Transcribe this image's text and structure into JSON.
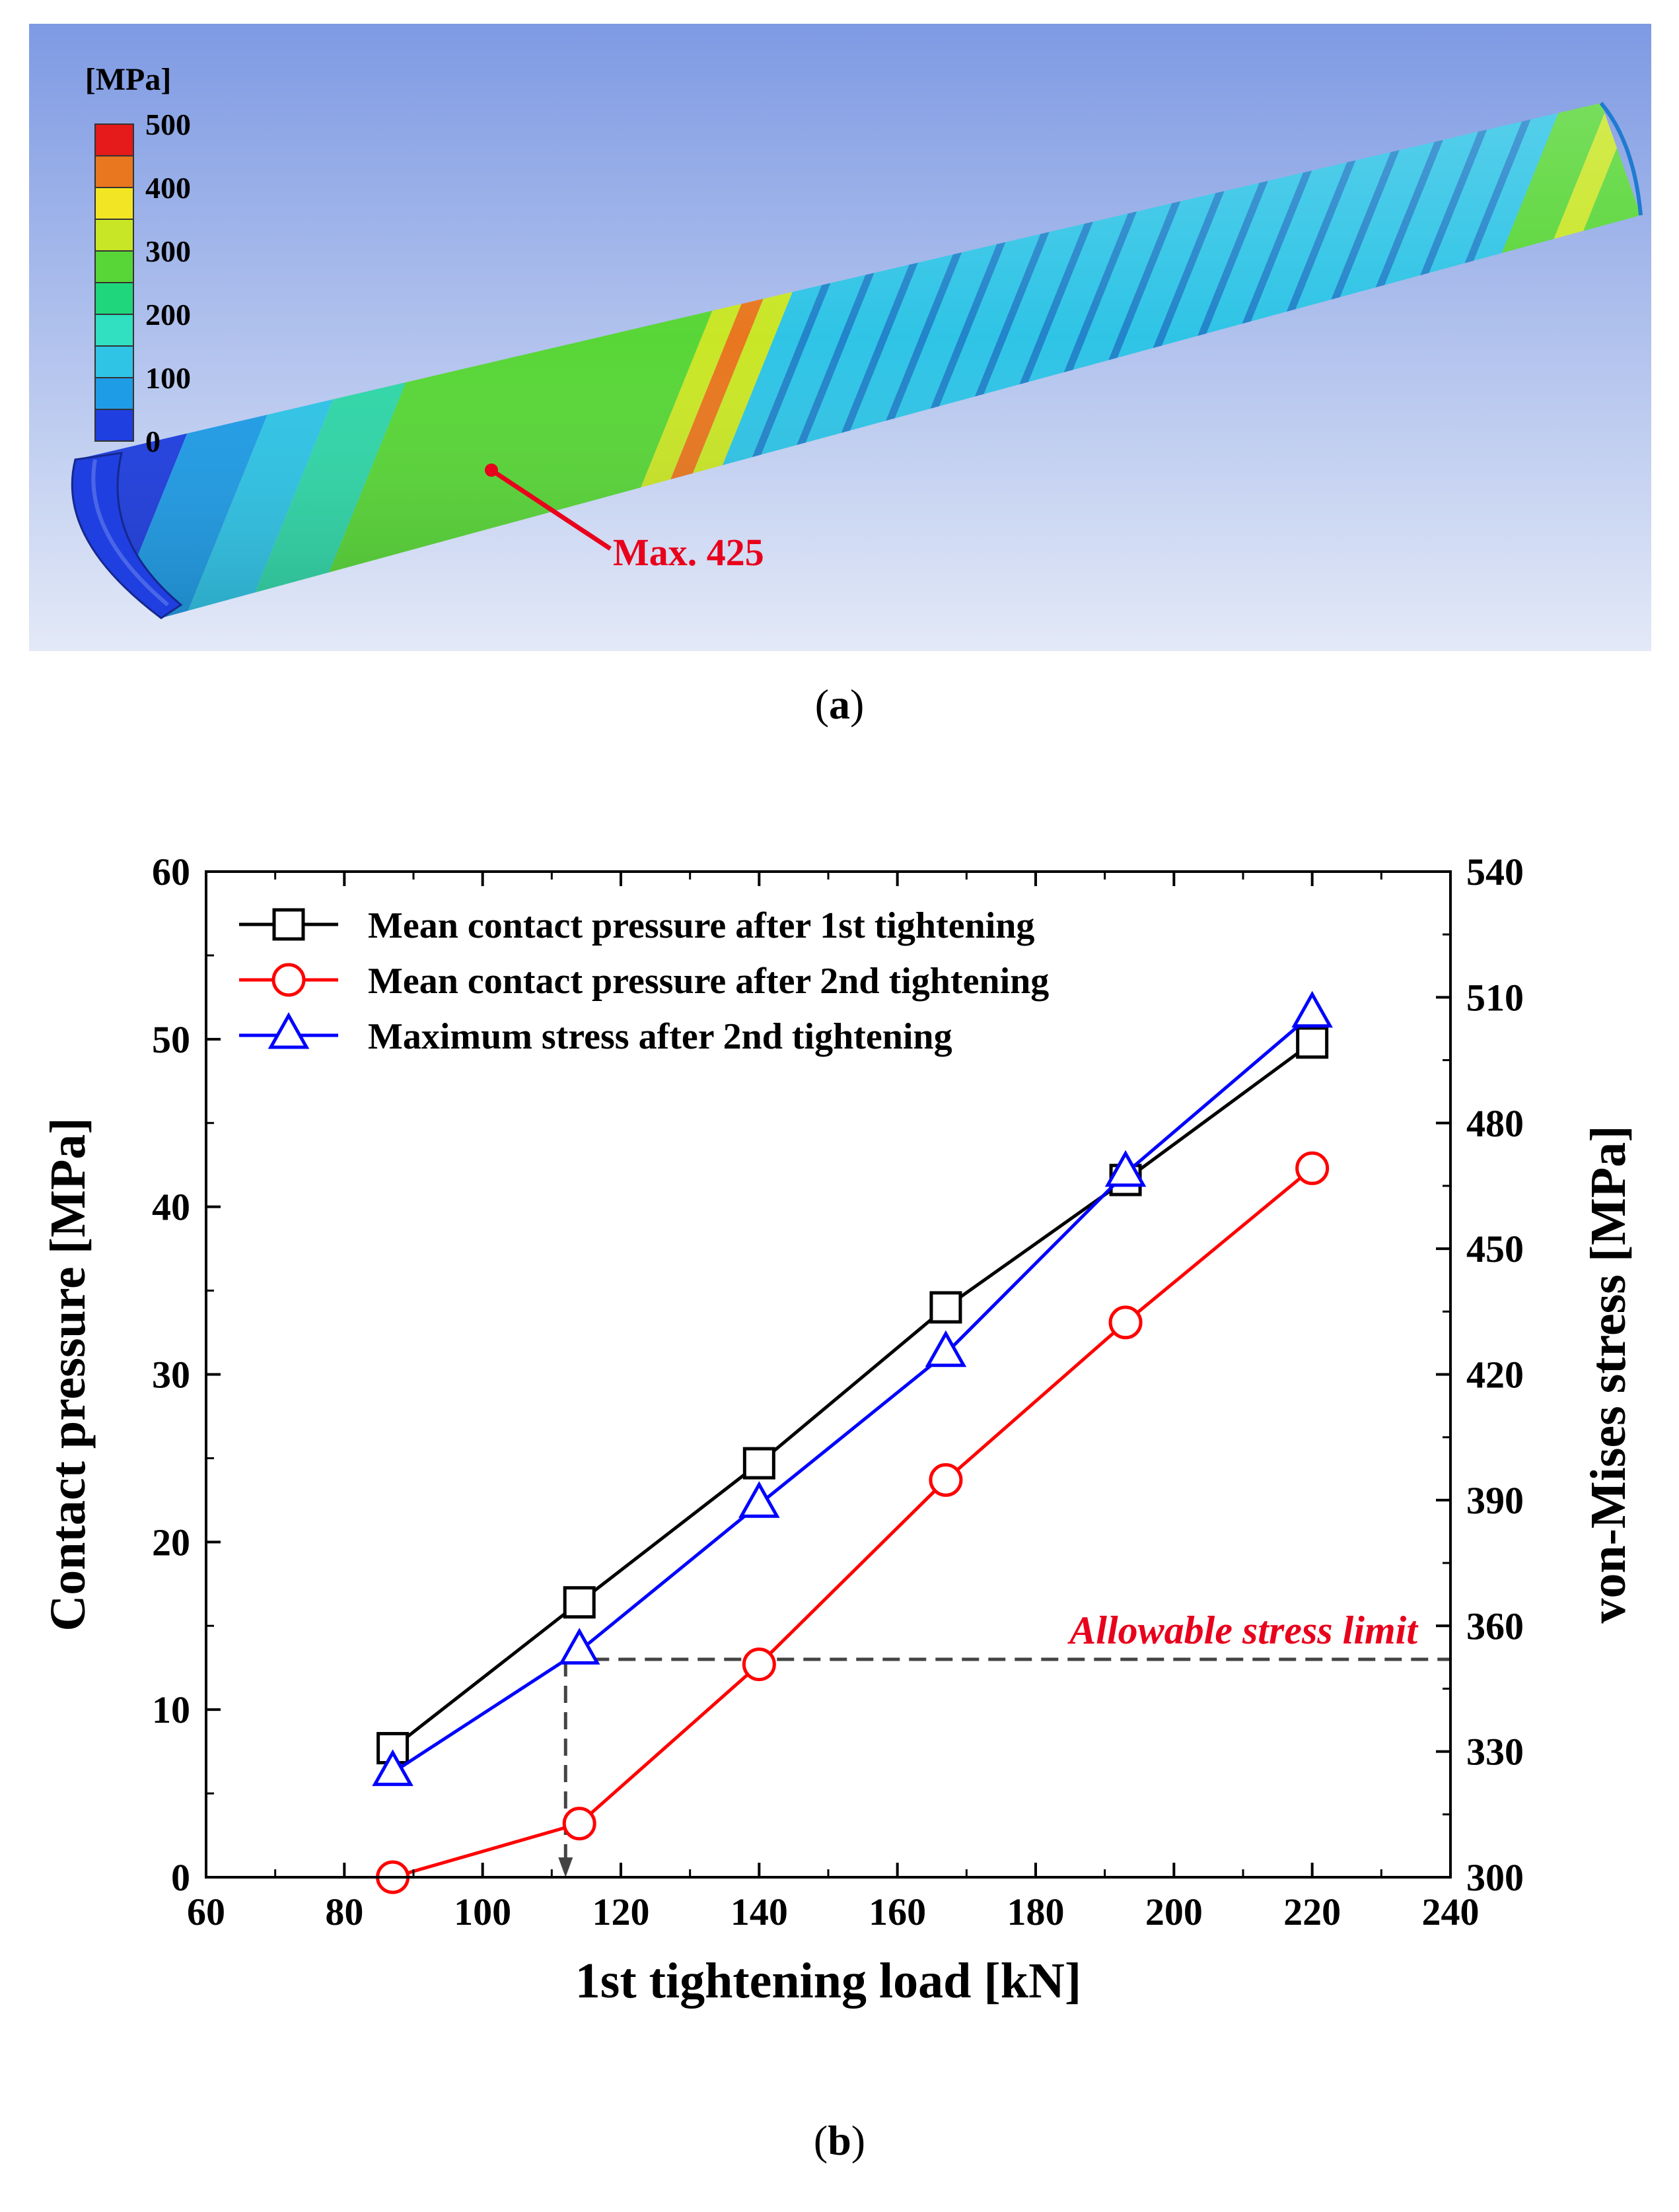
{
  "panel_a": {
    "caption": "a",
    "colorbar": {
      "unit": "[MPa]",
      "ticks": [
        "500",
        "400",
        "300",
        "200",
        "100",
        "0"
      ],
      "colors": [
        "#e51a1a",
        "#e8771f",
        "#f2e624",
        "#c9e626",
        "#58d637",
        "#20d67c",
        "#30e0c0",
        "#2fc4e6",
        "#1f9ce6",
        "#1f3fe0"
      ]
    },
    "max_label": "Max. 425",
    "max_color": "#e8001c"
  },
  "panel_b": {
    "caption": "b",
    "annotation": "Allowable stress limit",
    "annotation_color": "#e8001c"
  },
  "chart_data": {
    "type": "line",
    "xlabel": "1st tightening load [kN]",
    "ylabel": "Contact pressure [MPa]",
    "y2label": "von-Mises stress [MPa]",
    "xlim": [
      60,
      240
    ],
    "ylim": [
      0,
      60
    ],
    "y2lim": [
      300,
      540
    ],
    "xticks": [
      60,
      80,
      100,
      120,
      140,
      160,
      180,
      200,
      220,
      240
    ],
    "yticks": [
      0,
      10,
      20,
      30,
      40,
      50,
      60
    ],
    "y2ticks": [
      300,
      330,
      360,
      390,
      420,
      450,
      480,
      510,
      540
    ],
    "series": [
      {
        "name": "Mean contact pressure after 1st tightening",
        "axis": "left",
        "marker": "square",
        "color": "#000000",
        "x": [
          87,
          114,
          140,
          167,
          193,
          220
        ],
        "values": [
          7.7,
          16.4,
          24.7,
          34.0,
          41.6,
          49.8
        ]
      },
      {
        "name": "Mean contact pressure after 2nd tightening",
        "axis": "left",
        "marker": "circle",
        "color": "#ff0000",
        "x": [
          87,
          114,
          140,
          167,
          193,
          220
        ],
        "values": [
          0.0,
          3.2,
          12.7,
          23.7,
          33.1,
          42.3
        ]
      },
      {
        "name": "Maximum stress after 2nd tightening",
        "axis": "right",
        "marker": "triangle",
        "color": "#0000ff",
        "x": [
          87,
          114,
          140,
          167,
          193,
          220
        ],
        "values": [
          325,
          354,
          389,
          425,
          468,
          506
        ]
      }
    ],
    "allowable_stress_limit": 352,
    "allowable_load": 112
  }
}
